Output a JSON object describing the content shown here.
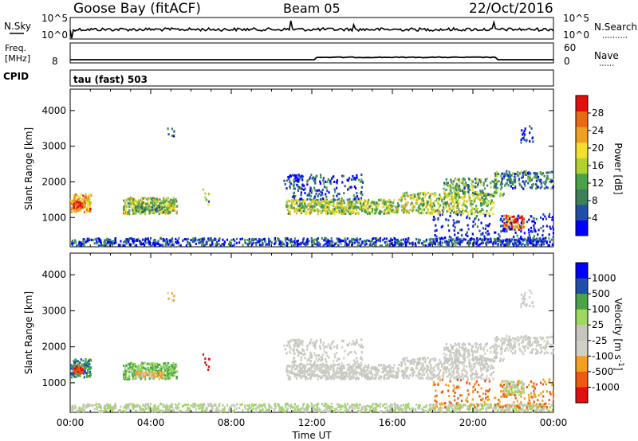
{
  "header": {
    "station": "Goose Bay (fitACF)",
    "beam": "Beam 05",
    "date": "22/Oct/2016"
  },
  "nsky_panel": {
    "left_label": "N.Sky",
    "right_label": "N.Search",
    "left_ticks": [
      "10^5",
      "10^0"
    ],
    "right_ticks": [
      "10^5",
      "10^0"
    ]
  },
  "freq_panel": {
    "left_label_1": "Freq.",
    "left_label_2": "[MHz]",
    "right_label": "Nave",
    "left_ticks": [
      "8"
    ],
    "right_ticks": [
      "60",
      "0"
    ]
  },
  "cpid": {
    "label": "CPID",
    "value": "tau (fast) 503"
  },
  "colors": {
    "power": [
      "#0000ff",
      "#1f4fa8",
      "#3c7f58",
      "#4aa34a",
      "#b3d12e",
      "#f2e02a",
      "#f0a020",
      "#e86a14",
      "#e01010"
    ],
    "velocity": [
      "#e01010",
      "#ee5a10",
      "#f2a020",
      "#d0d0c8",
      "#c6c6be",
      "#9fd860",
      "#4aa34a",
      "#1f4fa8",
      "#0000ff"
    ]
  },
  "chart_data": [
    {
      "type": "heatmap",
      "name": "power",
      "ylabel": "Slant Range [km]",
      "xlabel": "Time UT",
      "x_ticks": [
        "00:00",
        "04:00",
        "08:00",
        "12:00",
        "16:00",
        "20:00",
        "00:00"
      ],
      "y_ticks": [
        "1000",
        "2000",
        "3000",
        "4000"
      ],
      "ylim": [
        180,
        4600
      ],
      "colorbar_label": "Power [dB]",
      "colorbar_ticks": [
        "4",
        "8",
        "12",
        "16",
        "20",
        "24",
        "28"
      ],
      "scatter_regions": [
        {
          "t": [
            0.0,
            1.0
          ],
          "r": [
            1100,
            1700
          ],
          "level": "high"
        },
        {
          "t": [
            2.5,
            5.3
          ],
          "r": [
            1100,
            1550
          ],
          "level": "mid"
        },
        {
          "t": [
            10.5,
            16.5
          ],
          "r": [
            1050,
            1650
          ],
          "level": "mid"
        },
        {
          "t": [
            16.5,
            24.0
          ],
          "r": [
            1050,
            2400
          ],
          "level": "mid"
        },
        {
          "t": [
            21.5,
            22.5
          ],
          "r": [
            600,
            1000
          ],
          "level": "high"
        },
        {
          "t": [
            0.0,
            24.0
          ],
          "r": [
            200,
            450
          ],
          "level": "low"
        }
      ]
    },
    {
      "type": "heatmap",
      "name": "velocity",
      "ylabel": "Slant Range [km]",
      "xlabel": "Time UT",
      "x_ticks": [
        "00:00",
        "04:00",
        "08:00",
        "12:00",
        "16:00",
        "20:00",
        "00:00"
      ],
      "y_ticks": [
        "1000",
        "2000",
        "3000",
        "4000"
      ],
      "ylim": [
        180,
        4600
      ],
      "colorbar_label": "Velocity [m s",
      "colorbar_sup": "-1",
      "colorbar_label_end": "]",
      "colorbar_ticks": [
        "1000",
        "500",
        "100",
        "25",
        "-25",
        "-100",
        "-500",
        "-1000"
      ]
    }
  ],
  "xlabel": "Time UT"
}
